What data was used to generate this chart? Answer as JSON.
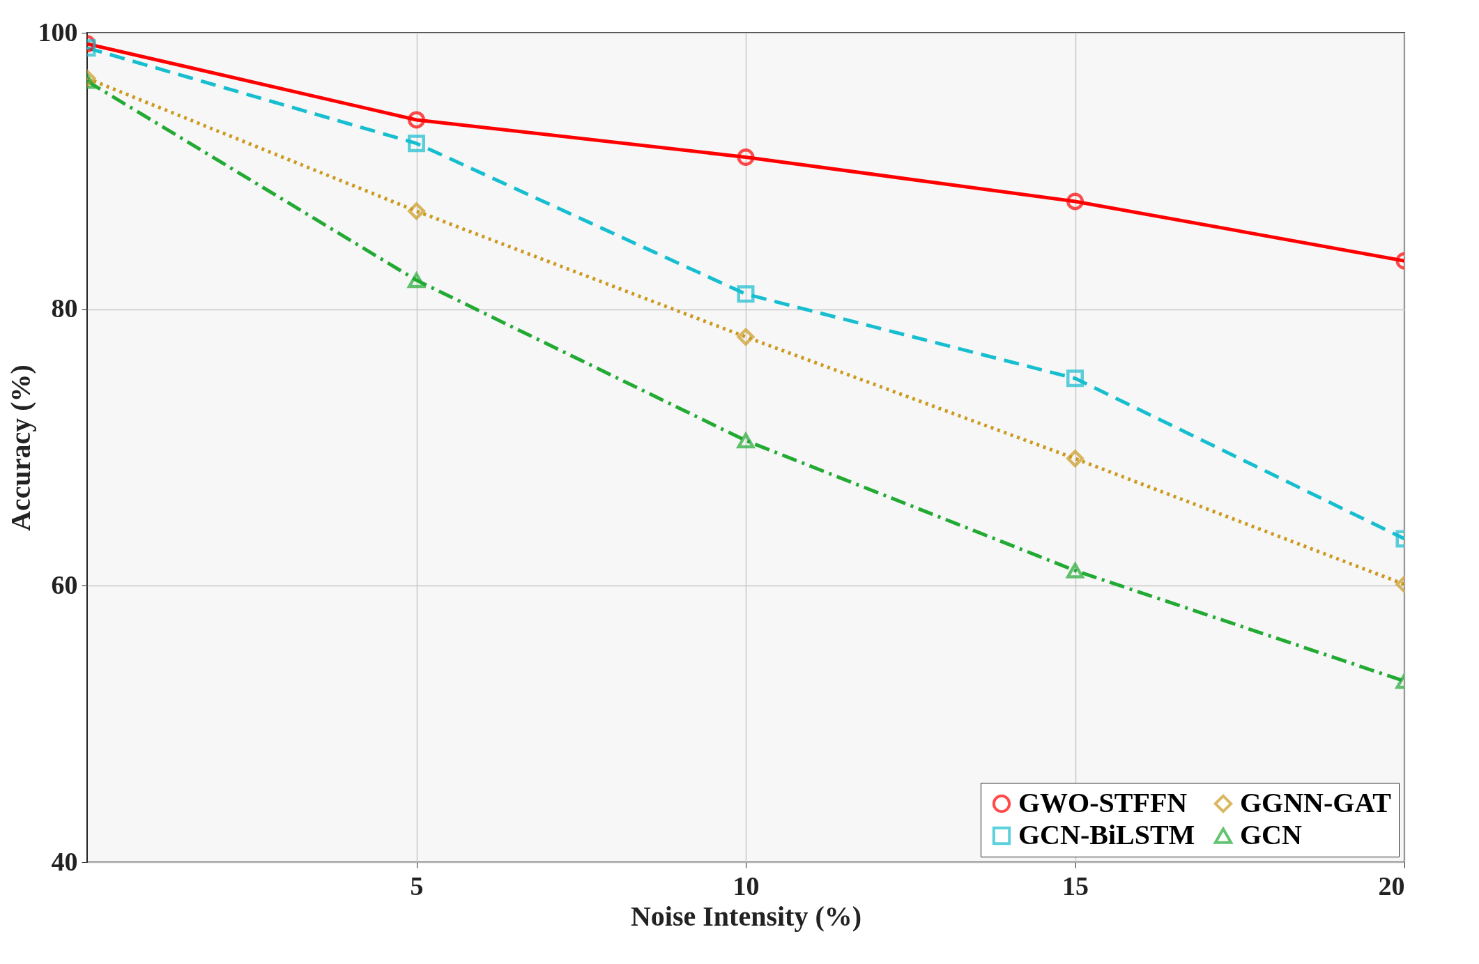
{
  "chart_data": {
    "type": "line",
    "xlabel": "Noise Intensity (%)",
    "ylabel": "Accuracy (%)",
    "x": [
      0,
      5,
      10,
      15,
      20
    ],
    "xlim": [
      0,
      20
    ],
    "xticks": [
      5,
      10,
      15,
      20
    ],
    "ylim": [
      40,
      100
    ],
    "yticks": [
      40,
      60,
      80,
      100
    ],
    "grid": true,
    "legend": "bottom right",
    "series": [
      {
        "name": "GWO-STFFN",
        "color": "#ff0000",
        "marker": "circle",
        "line_style": "solid",
        "values": [
          99.2,
          93.7,
          91.0,
          87.8,
          83.5
        ]
      },
      {
        "name": "GCN-BiLSTM",
        "color": "#17becf",
        "marker": "square",
        "line_style": "dashed",
        "values": [
          98.9,
          92.0,
          81.1,
          75.0,
          63.4
        ]
      },
      {
        "name": "GGNN-GAT",
        "color": "#cc9a1f",
        "marker": "diamond",
        "line_style": "dotted",
        "values": [
          96.7,
          87.1,
          78.0,
          69.2,
          60.1
        ]
      },
      {
        "name": "GCN",
        "color": "#22aa33",
        "marker": "triangle",
        "line_style": "dashdot",
        "values": [
          96.5,
          82.1,
          70.5,
          61.1,
          53.1
        ]
      }
    ]
  }
}
